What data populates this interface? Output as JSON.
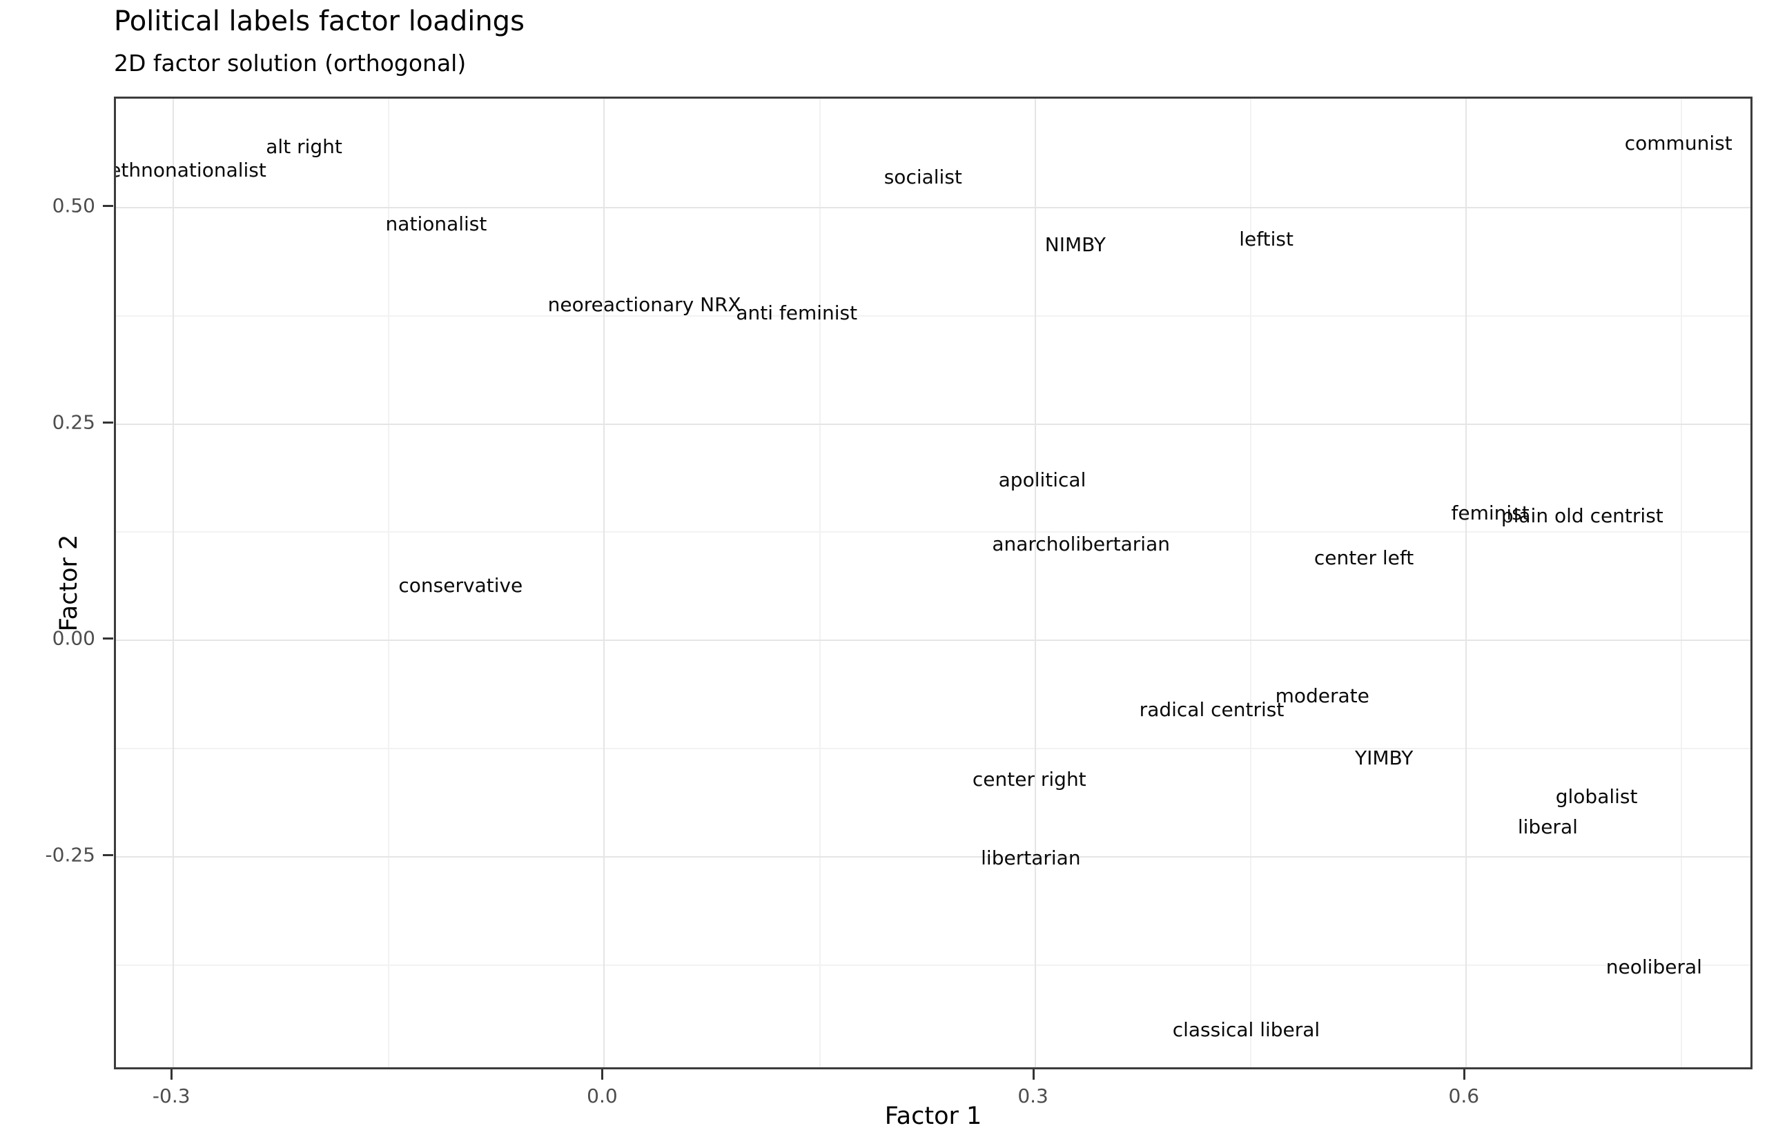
{
  "title": "Political labels factor loadings",
  "subtitle": "2D factor solution (orthogonal)",
  "chart_data": {
    "type": "scatter",
    "title": "Political labels factor loadings",
    "subtitle": "2D factor solution (orthogonal)",
    "xlabel": "Factor 1",
    "ylabel": "Factor 2",
    "xlim": [
      -0.34,
      0.801
    ],
    "ylim": [
      -0.498,
      0.626
    ],
    "grid": true,
    "x_ticks": [
      -0.3,
      0.0,
      0.3,
      0.6
    ],
    "x_tick_labels": [
      "-0.3",
      "0.0",
      "0.3",
      "0.6"
    ],
    "y_ticks": [
      0.5,
      0.25,
      0.0,
      -0.25
    ],
    "y_tick_labels": [
      "0.50",
      "0.25",
      "0.00",
      "-0.25"
    ],
    "x_minor_ticks": [
      -0.15,
      0.15,
      0.45,
      0.75
    ],
    "y_minor_ticks": [
      0.375,
      0.125,
      -0.125,
      -0.375
    ],
    "points": [
      {
        "label": "ethnonationalist",
        "x": -0.29,
        "y": 0.543
      },
      {
        "label": "alt right",
        "x": -0.209,
        "y": 0.57
      },
      {
        "label": "nationalist",
        "x": -0.117,
        "y": 0.481
      },
      {
        "label": "socialist",
        "x": 0.222,
        "y": 0.535
      },
      {
        "label": "NIMBY",
        "x": 0.328,
        "y": 0.457
      },
      {
        "label": "leftist",
        "x": 0.461,
        "y": 0.463
      },
      {
        "label": "neoreactionary NRX",
        "x": 0.028,
        "y": 0.388
      },
      {
        "label": "anti feminist",
        "x": 0.134,
        "y": 0.378
      },
      {
        "label": "apolitical",
        "x": 0.305,
        "y": 0.185
      },
      {
        "label": "feminist",
        "x": 0.617,
        "y": 0.147
      },
      {
        "label": "plain old centrist",
        "x": 0.681,
        "y": 0.144
      },
      {
        "label": "anarcholibertarian",
        "x": 0.332,
        "y": 0.111
      },
      {
        "label": "center left",
        "x": 0.529,
        "y": 0.095
      },
      {
        "label": "conservative",
        "x": -0.1,
        "y": 0.063
      },
      {
        "label": "moderate",
        "x": 0.5,
        "y": -0.064
      },
      {
        "label": "radical centrist",
        "x": 0.423,
        "y": -0.08
      },
      {
        "label": "YIMBY",
        "x": 0.543,
        "y": -0.136
      },
      {
        "label": "center right",
        "x": 0.296,
        "y": -0.161
      },
      {
        "label": "globalist",
        "x": 0.691,
        "y": -0.181
      },
      {
        "label": "liberal",
        "x": 0.657,
        "y": -0.216
      },
      {
        "label": "libertarian",
        "x": 0.297,
        "y": -0.252
      },
      {
        "label": "neoliberal",
        "x": 0.731,
        "y": -0.378
      },
      {
        "label": "classical liberal",
        "x": 0.447,
        "y": -0.45
      },
      {
        "label": "communist",
        "x": 0.748,
        "y": 0.574
      }
    ],
    "colors": {
      "background": "#ffffff",
      "panel_border": "#3c3c3c",
      "grid_major": "#e5e5e5",
      "grid_minor": "#f2f2f2",
      "tick_mark": "#333333",
      "tick_label": "#4d4d4d",
      "point_label": "#0a0a0a",
      "text": "#000000"
    }
  }
}
